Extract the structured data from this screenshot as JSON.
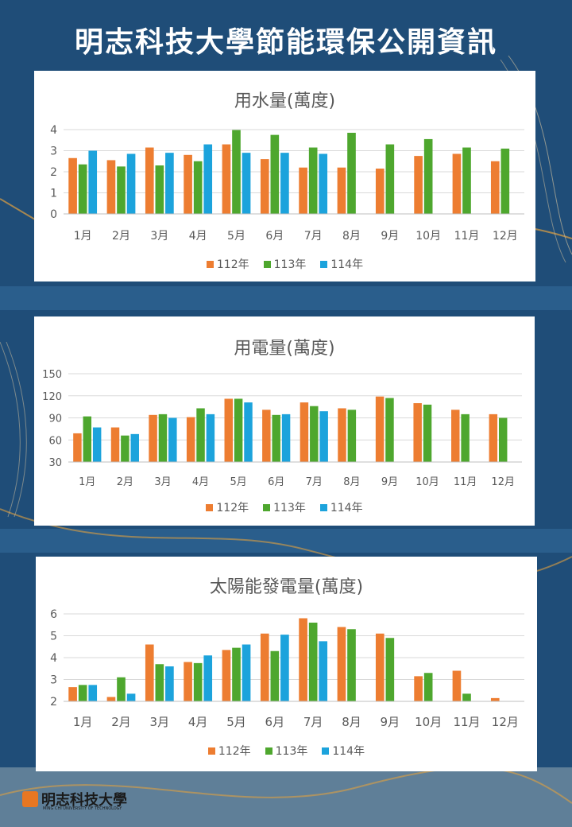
{
  "page": {
    "title": "明志科技大學節能環保公開資訊"
  },
  "logo": {
    "name": "明志科技大學",
    "subtitle": "MING CHI UNIVERSITY OF TECHNOLOGY"
  },
  "colors": {
    "s112": "#ed7d31",
    "s113": "#4ea72e",
    "s114": "#1ca3dc"
  },
  "chart_data": [
    {
      "type": "bar",
      "title": "用水量(萬度)",
      "categories": [
        "1月",
        "2月",
        "3月",
        "4月",
        "5月",
        "6月",
        "7月",
        "8月",
        "9月",
        "10月",
        "11月",
        "12月"
      ],
      "ylim": [
        0,
        4
      ],
      "yticks": [
        0,
        1,
        2,
        3,
        4
      ],
      "grid": true,
      "legend": "bottom",
      "series": [
        {
          "name": "112年",
          "values": [
            2.65,
            2.55,
            3.15,
            2.8,
            3.3,
            2.6,
            2.2,
            2.2,
            2.15,
            2.75,
            2.85,
            2.5
          ]
        },
        {
          "name": "113年",
          "values": [
            2.35,
            2.25,
            2.3,
            2.5,
            3.98,
            3.75,
            3.15,
            3.85,
            3.3,
            3.55,
            3.15,
            3.1
          ]
        },
        {
          "name": "114年",
          "values": [
            3.0,
            2.85,
            2.9,
            3.3,
            2.9,
            2.9,
            2.85,
            null,
            null,
            null,
            null,
            null
          ]
        }
      ]
    },
    {
      "type": "bar",
      "title": "用電量(萬度)",
      "categories": [
        "1月",
        "2月",
        "3月",
        "4月",
        "5月",
        "6月",
        "7月",
        "8月",
        "9月",
        "10月",
        "11月",
        "12月"
      ],
      "ylim": [
        30,
        150
      ],
      "yticks": [
        30,
        60,
        90,
        120,
        150
      ],
      "grid": true,
      "legend": "bottom",
      "series": [
        {
          "name": "112年",
          "values": [
            69,
            77,
            94,
            91,
            116,
            101,
            111,
            103,
            119,
            110,
            101,
            95
          ]
        },
        {
          "name": "113年",
          "values": [
            92,
            66,
            95,
            103,
            116,
            94,
            106,
            101,
            117,
            108,
            95,
            90
          ]
        },
        {
          "name": "114年",
          "values": [
            77,
            68,
            90,
            95,
            111,
            95,
            99,
            null,
            null,
            null,
            null,
            null
          ]
        }
      ]
    },
    {
      "type": "bar",
      "title": "太陽能發電量(萬度)",
      "categories": [
        "1月",
        "2月",
        "3月",
        "4月",
        "5月",
        "6月",
        "7月",
        "8月",
        "9月",
        "10月",
        "11月",
        "12月"
      ],
      "ylim": [
        2,
        6
      ],
      "yticks": [
        2,
        3,
        4,
        5,
        6
      ],
      "grid": true,
      "legend": "bottom",
      "series": [
        {
          "name": "112年",
          "values": [
            2.65,
            2.2,
            4.6,
            3.8,
            4.35,
            5.1,
            5.8,
            5.4,
            5.1,
            3.15,
            3.4,
            2.15
          ]
        },
        {
          "name": "113年",
          "values": [
            2.75,
            3.1,
            3.7,
            3.75,
            4.45,
            4.3,
            5.6,
            5.3,
            4.9,
            3.3,
            2.35,
            null
          ]
        },
        {
          "name": "114年",
          "values": [
            2.75,
            2.35,
            3.6,
            4.1,
            4.6,
            5.05,
            4.75,
            null,
            null,
            null,
            null,
            null
          ]
        }
      ]
    }
  ]
}
